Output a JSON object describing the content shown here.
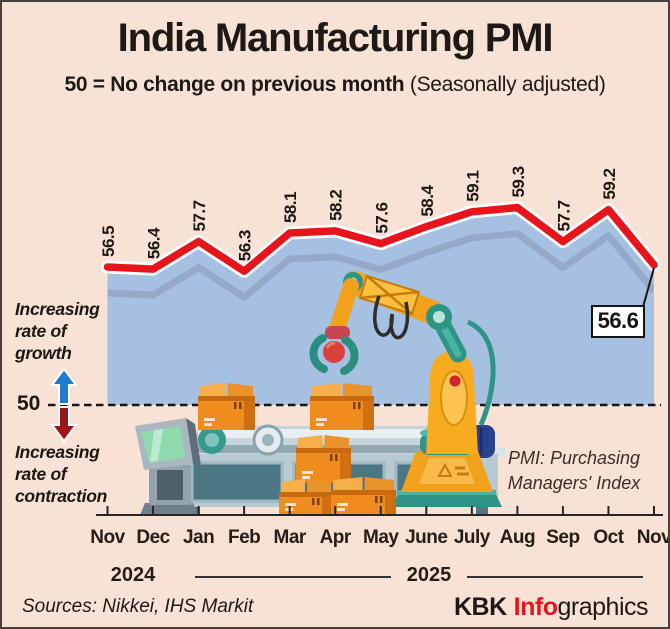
{
  "header": {
    "title": "India Manufacturing PMI",
    "subtitle_bold": "50 = No change on previous month",
    "subtitle_regular": "(Seasonally adjusted)"
  },
  "chart_data": {
    "type": "line",
    "title": "India Manufacturing PMI",
    "x": [
      "Nov",
      "Dec",
      "Jan",
      "Feb",
      "Mar",
      "Apr",
      "May",
      "June",
      "July",
      "Aug",
      "Sep",
      "Oct",
      "Nov"
    ],
    "year_labels": [
      "2024",
      "2025"
    ],
    "values": [
      56.5,
      56.4,
      57.7,
      56.3,
      58.1,
      58.2,
      57.6,
      58.4,
      59.1,
      59.3,
      57.7,
      59.2,
      56.6
    ],
    "baseline_value": 50,
    "baseline_label": "50",
    "callout_label": "56.6",
    "annotation_above": "Increasing rate of growth",
    "annotation_below": "Increasing rate of contraction",
    "ylim": [
      50,
      60.5
    ],
    "grid": false,
    "line_color": "#e8141c",
    "area_color": "#a6c0e2",
    "echo_color": "#95a9c8",
    "growth_arrow_color": "#1f7ad0",
    "contraction_arrow_color": "#9f151a"
  },
  "note": {
    "text": "PMI: Purchasing Managers' Index"
  },
  "footer": {
    "sources": "Sources: Nikkei, IHS Markit",
    "brand_kbk": "KBK",
    "brand_info": "Info",
    "brand_graphics": "graphics"
  }
}
